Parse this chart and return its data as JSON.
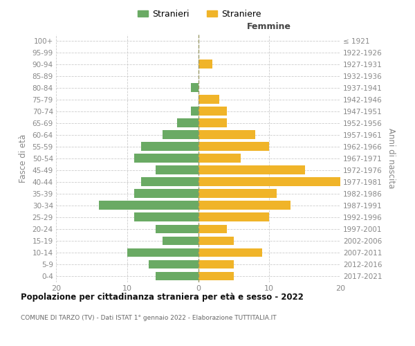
{
  "age_groups_bottom_to_top": [
    "0-4",
    "5-9",
    "10-14",
    "15-19",
    "20-24",
    "25-29",
    "30-34",
    "35-39",
    "40-44",
    "45-49",
    "50-54",
    "55-59",
    "60-64",
    "65-69",
    "70-74",
    "75-79",
    "80-84",
    "85-89",
    "90-94",
    "95-99",
    "100+"
  ],
  "birth_years_bottom_to_top": [
    "2017-2021",
    "2012-2016",
    "2007-2011",
    "2002-2006",
    "1997-2001",
    "1992-1996",
    "1987-1991",
    "1982-1986",
    "1977-1981",
    "1972-1976",
    "1967-1971",
    "1962-1966",
    "1957-1961",
    "1952-1956",
    "1947-1951",
    "1942-1946",
    "1937-1941",
    "1932-1936",
    "1927-1931",
    "1922-1926",
    "≤ 1921"
  ],
  "males_bottom_to_top": [
    6,
    7,
    10,
    5,
    6,
    9,
    14,
    9,
    8,
    6,
    9,
    8,
    5,
    3,
    1,
    0,
    1,
    0,
    0,
    0,
    0
  ],
  "females_bottom_to_top": [
    5,
    5,
    9,
    5,
    4,
    10,
    13,
    11,
    20,
    15,
    6,
    10,
    8,
    4,
    4,
    3,
    0,
    0,
    2,
    0,
    0
  ],
  "male_color": "#6aaa64",
  "female_color": "#f0b429",
  "male_label": "Stranieri",
  "female_label": "Straniere",
  "title": "Popolazione per cittadinanza straniera per età e sesso - 2022",
  "subtitle": "COMUNE DI TARZO (TV) - Dati ISTAT 1° gennaio 2022 - Elaborazione TUTTITALIA.IT",
  "ylabel_left": "Fasce di età",
  "ylabel_right": "Anni di nascita",
  "header_right": "Femmine",
  "xlim": 20,
  "background_color": "#ffffff",
  "grid_color": "#cccccc",
  "tick_color": "#888888",
  "spine_color": "#cccccc",
  "title_color": "#111111",
  "subtitle_color": "#666666",
  "centerline_color": "#999966",
  "header_color": "#444444"
}
